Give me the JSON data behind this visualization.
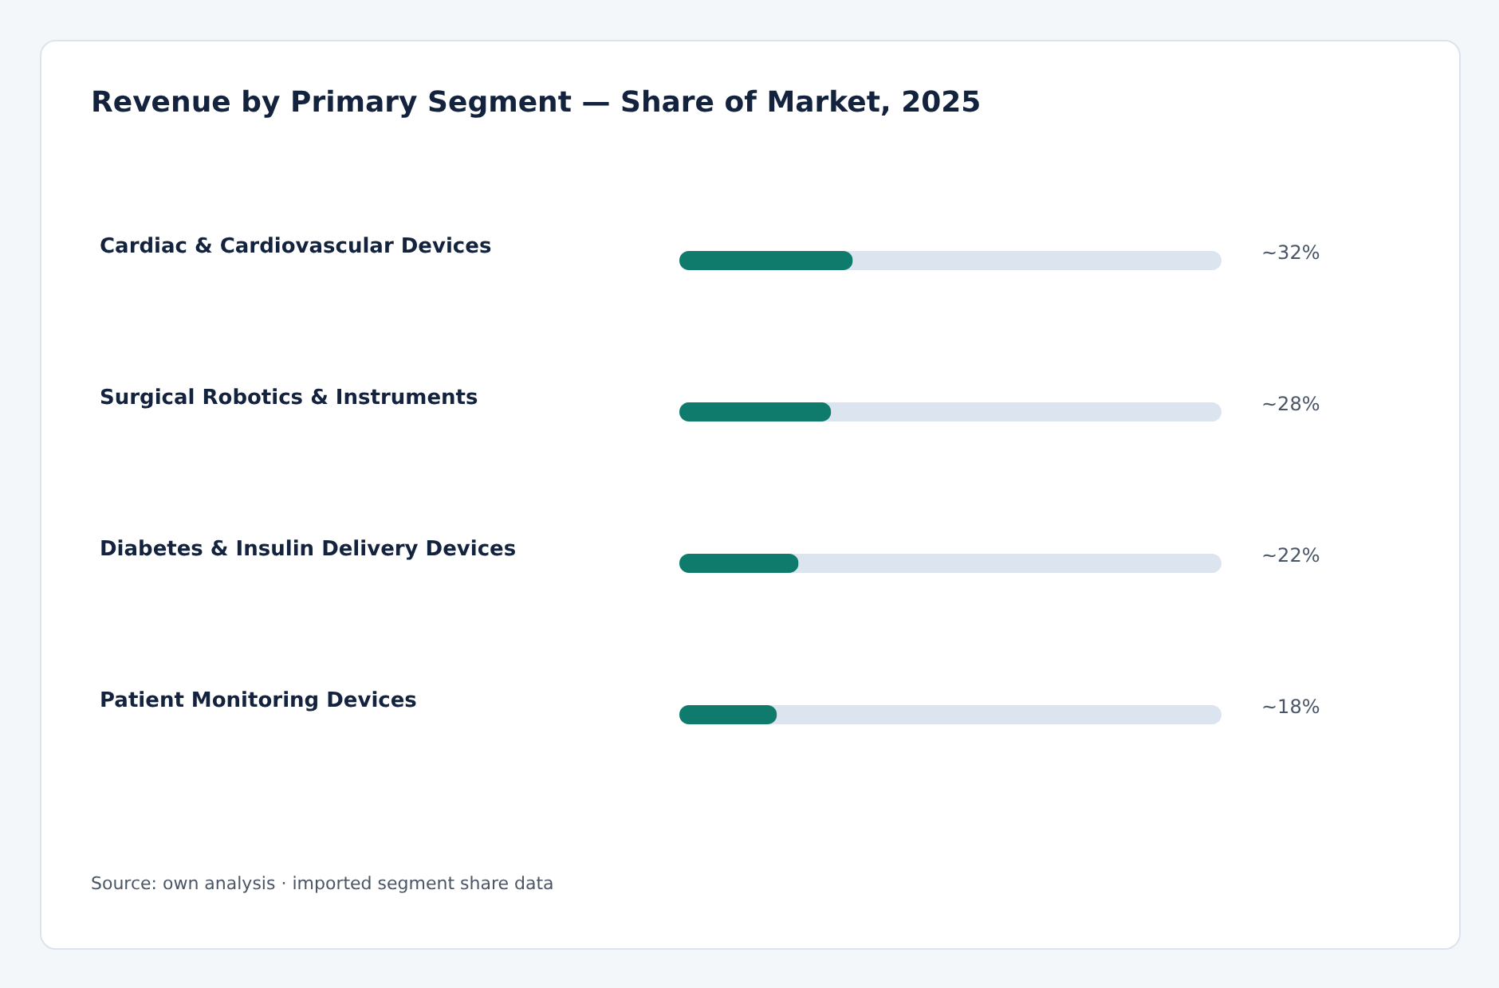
{
  "chart_data": {
    "type": "bar",
    "orientation": "horizontal",
    "title": "Revenue by Primary Segment — Share of Market, 2025",
    "categories": [
      "Cardiac & Cardiovascular Devices",
      "Surgical Robotics & Instruments",
      "Diabetes & Insulin Delivery Devices",
      "Patient Monitoring Devices"
    ],
    "values": [
      32,
      28,
      22,
      18
    ],
    "value_labels": [
      "~32%",
      "~28%",
      "~22%",
      "~18%"
    ],
    "color": "#0f7b6c",
    "xlim": [
      0,
      100
    ],
    "tick_labels": "y",
    "annotations": [
      "Source: own analysis · imported segment share data"
    ]
  }
}
